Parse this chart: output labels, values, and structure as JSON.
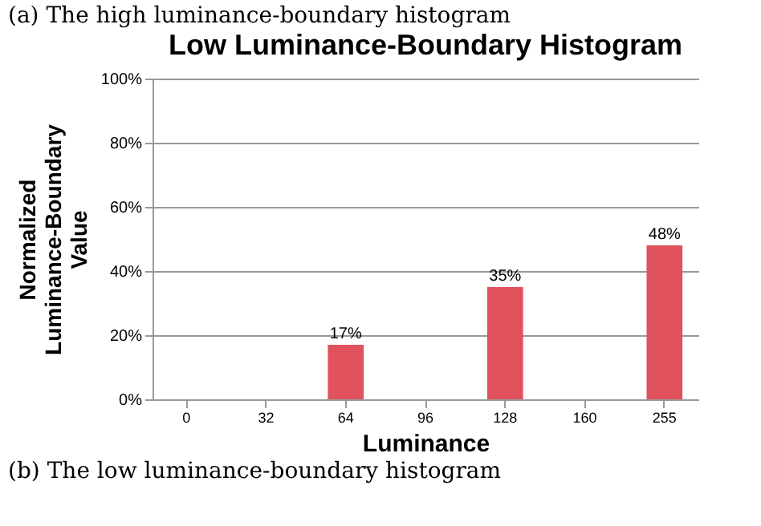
{
  "chart_data": {
    "type": "bar",
    "title": "Low Luminance-Boundary Histogram",
    "xlabel": "Luminance",
    "ylabel": "Normalized Luminance-Boundary Value",
    "categories": [
      "0",
      "32",
      "64",
      "96",
      "128",
      "160",
      "255"
    ],
    "values": [
      0,
      0,
      17,
      0,
      35,
      0,
      48
    ],
    "value_labels": [
      null,
      null,
      "17%",
      null,
      "35%",
      null,
      "48%"
    ],
    "color": "#e0525c",
    "ylim": [
      0,
      100
    ],
    "yticks": [
      {
        "value": 0,
        "label": "0%"
      },
      {
        "value": 20,
        "label": "20%"
      },
      {
        "value": 40,
        "label": "40%"
      },
      {
        "value": 60,
        "label": "60%"
      },
      {
        "value": 80,
        "label": "80%"
      },
      {
        "value": 100,
        "label": "100%"
      }
    ],
    "grid": "y",
    "annotations": [
      "(a) The high luminance-boundary histogram",
      "(b) The low luminance-boundary histogram"
    ]
  }
}
